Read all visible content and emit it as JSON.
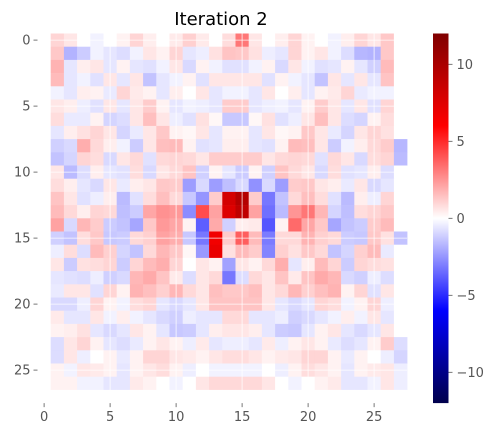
{
  "chart_data": {
    "type": "heatmap",
    "title": "Iteration 2",
    "xlabel": "",
    "ylabel": "",
    "rows": 28,
    "cols": 28,
    "x_ticks": [
      0,
      5,
      10,
      15,
      20,
      25
    ],
    "y_ticks": [
      0,
      5,
      10,
      15,
      20,
      25
    ],
    "colormap": "seismic",
    "vmin": -12,
    "vmax": 12,
    "colorbar_ticks": [
      -10,
      -5,
      0,
      5,
      10
    ],
    "colormap_stops": [
      {
        "v": -12,
        "color": "#00004c"
      },
      {
        "v": -6,
        "color": "#0000ff"
      },
      {
        "v": 0,
        "color": "#ffffff"
      },
      {
        "v": 6,
        "color": "#ff0000"
      },
      {
        "v": 12,
        "color": "#7f0000"
      }
    ],
    "grid": true,
    "grid_color": "#ffffff",
    "z": [
      [
        0.0,
        1.0,
        0.6,
        0.0,
        -0.3,
        0.0,
        0.3,
        1.0,
        0.4,
        0.0,
        0.5,
        1.1,
        0.5,
        0.0,
        0.8,
        3.2,
        0.6,
        0.0,
        0.4,
        1.0,
        0.3,
        0.0,
        -0.3,
        0.4,
        1.0,
        0.6,
        1.3,
        0.0
      ],
      [
        0.0,
        1.3,
        -1.8,
        -1.2,
        -0.3,
        -0.6,
        -0.8,
        -0.3,
        0.6,
        0.3,
        1.0,
        -0.6,
        -0.4,
        0.7,
        1.4,
        1.3,
        0.7,
        -0.4,
        -0.6,
        1.0,
        0.3,
        0.6,
        -0.3,
        -0.8,
        -1.7,
        -1.8,
        1.3,
        0.0
      ],
      [
        0.0,
        1.8,
        -0.6,
        0.4,
        0.6,
        -0.6,
        0.3,
        -0.6,
        -0.7,
        -0.3,
        0.6,
        -0.9,
        0.3,
        -0.3,
        -0.7,
        -0.7,
        -0.3,
        0.3,
        -0.9,
        0.6,
        -0.3,
        -0.7,
        -0.6,
        0.3,
        -0.6,
        -1.1,
        1.6,
        0.0
      ],
      [
        0.0,
        1.6,
        -0.6,
        -0.3,
        -0.7,
        0.6,
        -0.6,
        0.6,
        -1.4,
        -0.6,
        -0.3,
        0.3,
        -0.7,
        0.6,
        0.6,
        0.6,
        0.6,
        -0.7,
        0.3,
        -0.3,
        -0.6,
        -1.4,
        0.6,
        -0.6,
        0.6,
        -0.6,
        1.4,
        0.0
      ],
      [
        0.0,
        -0.3,
        -0.6,
        0.4,
        0.3,
        -0.5,
        1.0,
        0.5,
        0.3,
        -0.6,
        0.4,
        0.0,
        0.6,
        -0.6,
        -0.3,
        -0.3,
        -0.6,
        0.6,
        0.0,
        0.4,
        -0.6,
        0.3,
        0.5,
        1.0,
        -0.5,
        -0.3,
        -0.3,
        0.0
      ],
      [
        0.0,
        0.6,
        0.4,
        -0.4,
        -0.7,
        0.6,
        -0.6,
        0.6,
        1.2,
        0.3,
        -0.6,
        -0.3,
        -0.4,
        -0.6,
        1.2,
        1.2,
        -0.6,
        -0.4,
        -0.3,
        -0.6,
        0.3,
        1.2,
        0.6,
        -0.6,
        0.6,
        -0.7,
        1.0,
        0.0
      ],
      [
        0.0,
        0.8,
        -0.5,
        -0.5,
        0.3,
        -1.0,
        -0.8,
        0.6,
        1.5,
        0.6,
        -0.4,
        -0.7,
        0.7,
        0.2,
        -1.3,
        -1.3,
        0.2,
        0.7,
        -0.7,
        -0.4,
        0.6,
        1.5,
        0.6,
        -0.8,
        -1.0,
        0.3,
        0.8,
        0.0
      ],
      [
        0.0,
        -0.6,
        0.4,
        0.7,
        1.0,
        0.6,
        -1.0,
        -0.5,
        0.6,
        1.3,
        0.3,
        0.2,
        0.6,
        -0.6,
        0.3,
        0.3,
        -0.6,
        0.6,
        0.2,
        0.3,
        1.3,
        0.6,
        -0.5,
        -1.0,
        0.6,
        1.0,
        0.7,
        0.0
      ],
      [
        0.0,
        -1.1,
        -0.9,
        1.9,
        0.9,
        0.4,
        -0.3,
        -1.2,
        0.6,
        1.5,
        1.6,
        0.3,
        -0.7,
        -0.6,
        0.4,
        0.4,
        -0.6,
        -0.7,
        0.3,
        1.6,
        1.5,
        0.6,
        -1.2,
        -0.3,
        0.4,
        0.9,
        1.2,
        -1.7
      ],
      [
        0.0,
        -1.4,
        -1.0,
        1.0,
        0.8,
        -0.9,
        0.6,
        0.9,
        -0.7,
        0.9,
        1.0,
        0.9,
        0.6,
        1.2,
        1.2,
        1.2,
        1.2,
        0.6,
        0.9,
        1.0,
        0.9,
        -0.7,
        0.9,
        0.6,
        -0.9,
        0.8,
        1.0,
        -1.6
      ],
      [
        0.0,
        0.6,
        -1.6,
        -0.8,
        0.4,
        -0.6,
        -0.7,
        0.8,
        -0.9,
        0.6,
        0.9,
        1.4,
        -1.1,
        0.3,
        -0.6,
        -1.2,
        0.3,
        -1.1,
        1.4,
        0.9,
        0.6,
        -0.9,
        0.8,
        -0.7,
        -0.6,
        0.4,
        -0.8,
        0.0
      ],
      [
        0.0,
        0.8,
        0.4,
        -0.6,
        -0.9,
        0.6,
        -0.5,
        0.4,
        0.6,
        1.3,
        1.2,
        -2.3,
        -0.9,
        -2.3,
        -1.5,
        -0.9,
        -2.6,
        -0.9,
        -2.3,
        1.2,
        1.3,
        0.6,
        0.4,
        -0.5,
        0.6,
        -0.9,
        -0.6,
        0.0
      ],
      [
        0.0,
        1.4,
        0.6,
        -0.7,
        -0.4,
        0.4,
        -1.6,
        -0.7,
        0.8,
        1.5,
        0.9,
        -1.3,
        -2.5,
        1.2,
        8.0,
        9.5,
        1.2,
        -3.2,
        -1.4,
        0.9,
        1.5,
        0.8,
        -0.7,
        -1.6,
        0.4,
        -0.4,
        1.0,
        0.0
      ],
      [
        0.0,
        1.6,
        0.9,
        0.4,
        1.0,
        0.9,
        -1.5,
        -1.2,
        2.1,
        2.6,
        2.4,
        -2.7,
        4.2,
        2.2,
        7.6,
        9.0,
        2.2,
        -3.4,
        -1.6,
        2.5,
        3.2,
        1.7,
        -1.0,
        -1.5,
        0.8,
        1.0,
        1.3,
        0.0
      ],
      [
        0.0,
        2.2,
        -0.9,
        1.7,
        1.2,
        -1.2,
        -1.4,
        -2.1,
        1.3,
        2.4,
        2.1,
        0.3,
        -3.8,
        2.0,
        -1.1,
        0.4,
        0.5,
        -4.0,
        0.3,
        3.5,
        2.1,
        1.3,
        -2.1,
        -1.4,
        -1.2,
        1.2,
        1.6,
        0.0
      ],
      [
        0.0,
        -1.1,
        -1.4,
        0.8,
        1.3,
        -1.3,
        -1.2,
        0.9,
        1.1,
        2.2,
        1.9,
        -1.3,
        -3.2,
        6.6,
        1.2,
        3.8,
        1.6,
        -3.1,
        0.9,
        0.9,
        1.8,
        1.1,
        0.9,
        -1.2,
        -1.3,
        1.3,
        0.7,
        -1.4
      ],
      [
        0.0,
        -0.4,
        0.8,
        -0.8,
        1.6,
        1.1,
        -1.0,
        -1.4,
        0.9,
        1.7,
        1.3,
        0.2,
        -2.4,
        7.0,
        0.7,
        1.6,
        1.2,
        -2.9,
        1.1,
        0.7,
        1.3,
        0.9,
        -1.4,
        -1.0,
        1.1,
        1.6,
        -0.5,
        0.0
      ],
      [
        0.0,
        0.6,
        -1.2,
        0.7,
        0.8,
        1.0,
        -1.2,
        1.0,
        1.6,
        1.9,
        1.0,
        0.0,
        0.6,
        0.3,
        -2.2,
        0.6,
        0.3,
        0.9,
        1.9,
        -0.6,
        0.4,
        1.6,
        1.0,
        -1.2,
        1.0,
        0.8,
        0.7,
        0.0
      ],
      [
        0.0,
        -0.6,
        -0.7,
        -0.8,
        -0.4,
        -1.1,
        -0.9,
        1.7,
        2.0,
        1.4,
        0.5,
        -0.8,
        0.6,
        0.9,
        -3.2,
        -0.8,
        0.9,
        0.6,
        1.4,
        0.5,
        1.4,
        2.0,
        1.7,
        -0.9,
        -1.1,
        -0.4,
        -0.8,
        0.0
      ],
      [
        0.0,
        -0.5,
        0.6,
        0.6,
        -0.7,
        1.0,
        0.3,
        1.8,
        1.5,
        1.1,
        1.7,
        0.9,
        0.6,
        1.5,
        1.3,
        1.3,
        1.5,
        0.6,
        0.9,
        1.7,
        1.1,
        1.5,
        1.8,
        0.3,
        1.0,
        -0.7,
        0.6,
        0.0
      ],
      [
        0.0,
        -0.9,
        -0.9,
        -0.4,
        1.0,
        0.3,
        -0.3,
        0.8,
        1.0,
        -0.6,
        -0.9,
        -0.6,
        0.6,
        1.4,
        1.4,
        1.4,
        1.4,
        0.6,
        -0.6,
        -0.9,
        -0.6,
        1.0,
        0.8,
        -0.3,
        0.3,
        1.0,
        -0.4,
        0.0
      ],
      [
        0.0,
        0.5,
        -0.6,
        -0.6,
        0.6,
        -0.3,
        0.4,
        -0.3,
        -0.6,
        -0.9,
        -1.1,
        -0.4,
        -0.6,
        -0.6,
        0.9,
        0.9,
        -0.6,
        -0.6,
        -0.4,
        -1.1,
        -0.9,
        -0.6,
        -0.3,
        0.4,
        -0.3,
        0.6,
        -0.6,
        0.0
      ],
      [
        0.0,
        0.3,
        0.4,
        0.7,
        -0.6,
        -0.9,
        -0.6,
        0.6,
        0.3,
        -0.6,
        -1.3,
        -1.2,
        -0.6,
        0.4,
        0.6,
        0.6,
        0.4,
        -0.6,
        -1.2,
        -1.3,
        -0.6,
        0.3,
        0.6,
        -0.6,
        -0.9,
        -0.6,
        0.6,
        0.0
      ],
      [
        0.0,
        -0.8,
        0.6,
        1.0,
        0.3,
        -0.6,
        -0.8,
        -0.5,
        0.3,
        0.6,
        0.3,
        -0.4,
        0.5,
        -0.6,
        -0.4,
        -0.4,
        -0.6,
        0.5,
        -0.4,
        0.3,
        0.6,
        0.3,
        -0.5,
        -0.8,
        -0.6,
        0.3,
        1.2,
        -0.8
      ],
      [
        0.0,
        -0.8,
        0.6,
        -0.4,
        0.0,
        0.3,
        -0.5,
        0.3,
        1.0,
        1.0,
        0.6,
        0.5,
        0.3,
        0.6,
        0.8,
        0.8,
        0.6,
        0.3,
        0.5,
        0.6,
        1.0,
        1.0,
        0.3,
        -0.5,
        0.3,
        0.0,
        -0.4,
        -1.0
      ],
      [
        0.0,
        0.3,
        -0.3,
        0.6,
        0.5,
        0.3,
        -0.6,
        0.3,
        0.6,
        0.8,
        0.3,
        -0.4,
        0.0,
        -0.3,
        -0.3,
        -0.3,
        -0.3,
        0.0,
        -0.4,
        0.3,
        0.8,
        0.6,
        0.3,
        -0.6,
        0.3,
        0.5,
        0.6,
        -0.4
      ],
      [
        0.0,
        0.3,
        0.3,
        -0.3,
        -0.3,
        -0.6,
        -0.6,
        0.5,
        0.3,
        0.0,
        -0.3,
        0.0,
        0.6,
        0.9,
        0.9,
        0.9,
        0.9,
        0.6,
        0.0,
        -0.3,
        0.0,
        0.3,
        0.5,
        -0.6,
        -0.6,
        -0.3,
        0.6,
        -0.4
      ],
      [
        0.0,
        0.0,
        0.0,
        0.0,
        0.0,
        0.0,
        0.0,
        0.0,
        0.0,
        0.0,
        0.0,
        0.0,
        0.0,
        0.0,
        0.0,
        0.0,
        0.0,
        0.0,
        0.0,
        0.0,
        0.0,
        0.0,
        0.0,
        0.0,
        0.0,
        0.0,
        0.0,
        0.0
      ]
    ]
  }
}
